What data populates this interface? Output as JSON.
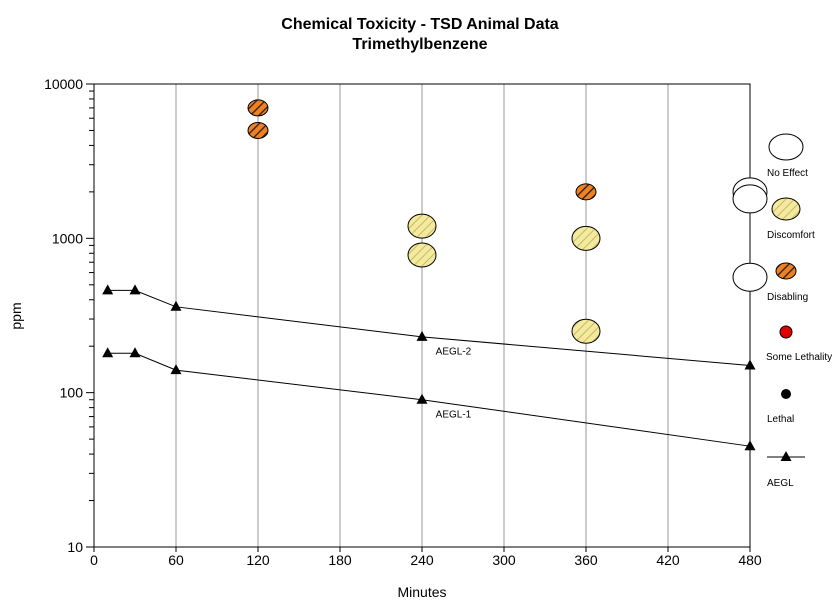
{
  "chart_data": {
    "type": "scatter",
    "title": "Chemical Toxicity - TSD Animal Data",
    "subtitle": "Trimethylbenzene",
    "xlabel": "Minutes",
    "ylabel": "ppm",
    "xlim": [
      0,
      480
    ],
    "ylim": [
      10,
      10000
    ],
    "yscale": "log",
    "grid": "vertical",
    "x_ticks": [
      "0",
      "60",
      "120",
      "180",
      "240",
      "300",
      "360",
      "420",
      "480"
    ],
    "y_ticks": [
      "10",
      "100",
      "1000",
      "10000"
    ],
    "series": [
      {
        "name": "No Effect",
        "points": [
          [
            480,
            2000
          ],
          [
            480,
            1800
          ],
          [
            480,
            560
          ]
        ]
      },
      {
        "name": "Discomfort",
        "points": [
          [
            240,
            1200
          ],
          [
            240,
            780
          ],
          [
            360,
            1000
          ],
          [
            360,
            250
          ]
        ]
      },
      {
        "name": "Disabling",
        "points": [
          [
            120,
            7000
          ],
          [
            120,
            5000
          ],
          [
            360,
            2000
          ]
        ]
      },
      {
        "name": "Some Lethality",
        "points": []
      },
      {
        "name": "Lethal",
        "points": []
      },
      {
        "name": "AEGL-2",
        "points": [
          [
            10,
            460
          ],
          [
            30,
            460
          ],
          [
            60,
            360
          ],
          [
            240,
            230
          ],
          [
            480,
            150
          ]
        ]
      },
      {
        "name": "AEGL-1",
        "points": [
          [
            10,
            180
          ],
          [
            30,
            180
          ],
          [
            60,
            140
          ],
          [
            240,
            90
          ],
          [
            480,
            45
          ]
        ]
      }
    ],
    "line_labels": [
      {
        "text": "AEGL-2",
        "x": 250,
        "y": 185
      },
      {
        "text": "AEGL-1",
        "x": 250,
        "y": 72
      }
    ],
    "legend_position": "right",
    "legend": [
      "No Effect",
      "Discomfort",
      "Disabling",
      "Some Lethality",
      "Lethal",
      "AEGL"
    ],
    "colors": {
      "discomfort_fill": "#f3eaa0",
      "discomfort_stripe": "#c8b860",
      "disabling_fill": "#f08020",
      "disabling_stripe": "#202020",
      "some_lethality": "#e00000",
      "lethal": "#000000",
      "grid": "#999999"
    }
  }
}
